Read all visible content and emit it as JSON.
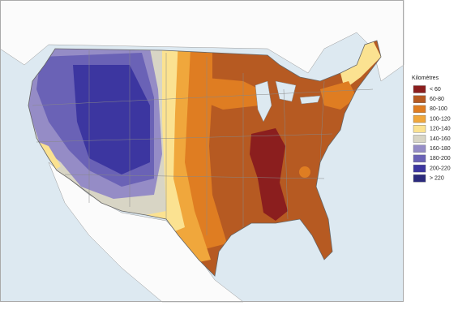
{
  "legend": {
    "title": "Kilomètres",
    "items": [
      {
        "label": "< 60",
        "color": "#8b1e1e"
      },
      {
        "label": "60-80",
        "color": "#b65a22"
      },
      {
        "label": "80-100",
        "color": "#df7d22"
      },
      {
        "label": "100-120",
        "color": "#f0a73c"
      },
      {
        "label": "120-140",
        "color": "#fbe291"
      },
      {
        "label": "140-160",
        "color": "#d8d5c5"
      },
      {
        "label": "160-180",
        "color": "#958cc6"
      },
      {
        "label": "180-200",
        "color": "#6a62b6"
      },
      {
        "label": "200-220",
        "color": "#3c36a0"
      },
      {
        "label": "> 220",
        "color": "#2b2a7c"
      }
    ]
  }
}
